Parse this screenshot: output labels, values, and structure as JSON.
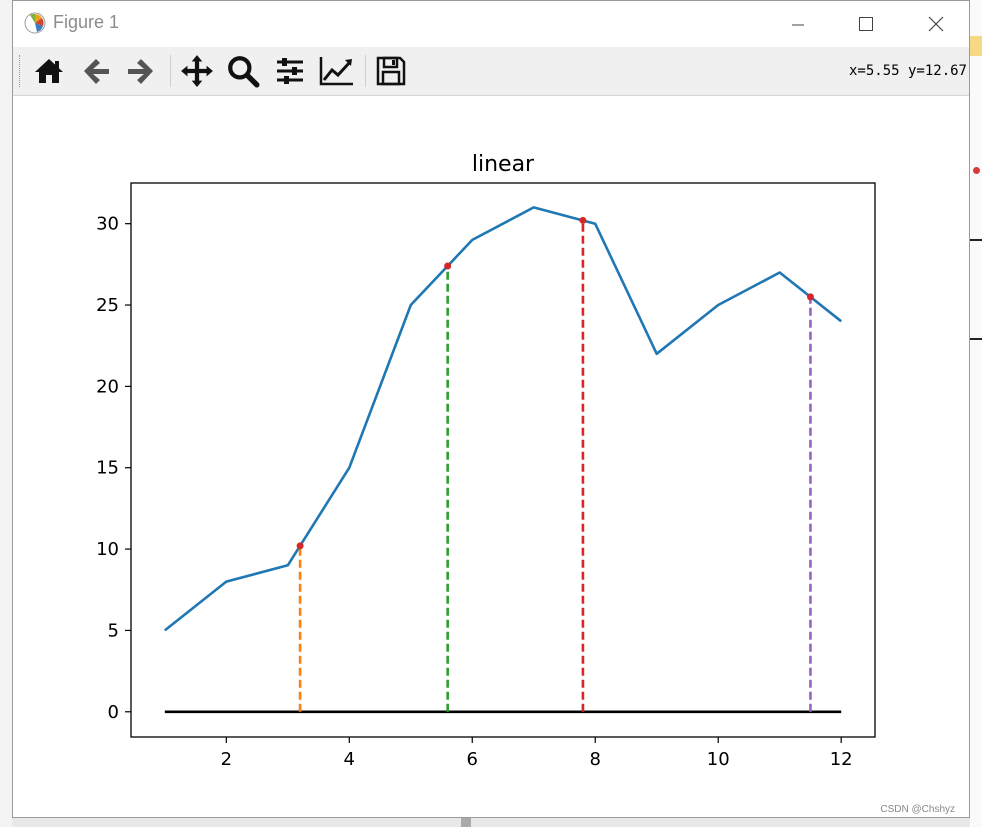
{
  "window": {
    "title": "Figure 1",
    "coords_readout": "x=5.55 y=12.67",
    "watermark": "CSDN @Chshyz"
  },
  "toolbar": {
    "tools": [
      {
        "name": "home",
        "icon": "home-icon"
      },
      {
        "name": "back",
        "icon": "arrow-left-icon"
      },
      {
        "name": "forward",
        "icon": "arrow-right-icon"
      },
      {
        "name": "pan",
        "icon": "move-icon"
      },
      {
        "name": "zoom",
        "icon": "magnifier-icon"
      },
      {
        "name": "subplots",
        "icon": "sliders-icon"
      },
      {
        "name": "edit-axis",
        "icon": "line-chart-icon"
      },
      {
        "name": "save",
        "icon": "floppy-icon"
      }
    ]
  },
  "chart_data": {
    "type": "line",
    "title": "linear",
    "xlabel": "",
    "ylabel": "",
    "xlim": [
      0.45,
      12.55
    ],
    "ylim": [
      -1.55,
      32.5
    ],
    "xticks": [
      2,
      4,
      6,
      8,
      10,
      12
    ],
    "yticks": [
      0,
      5,
      10,
      15,
      20,
      25,
      30
    ],
    "grid": false,
    "series": [
      {
        "color": "#1f77b4",
        "x": [
          1,
          2,
          3,
          4,
          5,
          6,
          7,
          8,
          9,
          10,
          11,
          12
        ],
        "y": [
          5,
          8,
          9,
          15,
          25,
          29,
          31,
          30,
          22,
          25,
          27,
          24
        ]
      }
    ],
    "baseline": {
      "y": 0,
      "x_from": 1,
      "x_to": 12,
      "color": "#000000"
    },
    "markers": [
      {
        "x": 3.2,
        "y": 10.2,
        "line_color": "#ff7f0e"
      },
      {
        "x": 5.6,
        "y": 27.4,
        "line_color": "#2ca02c"
      },
      {
        "x": 7.8,
        "y": 30.2,
        "line_color": "#d62728"
      },
      {
        "x": 11.5,
        "y": 25.5,
        "line_color": "#9467bd"
      }
    ],
    "marker_color": "#d62728"
  }
}
